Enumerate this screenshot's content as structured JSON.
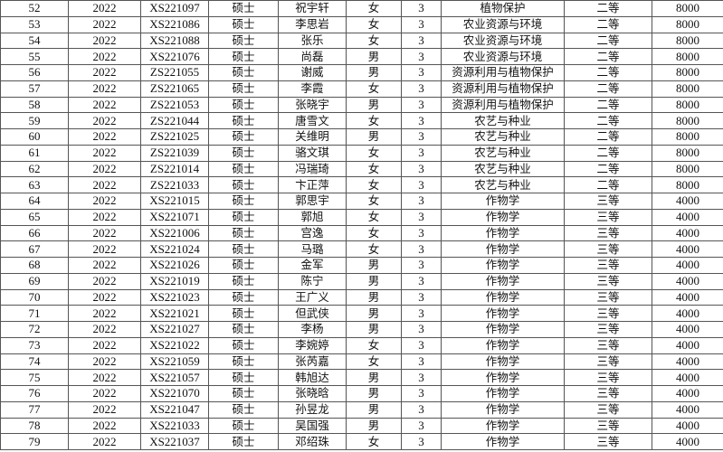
{
  "table": {
    "rows": [
      [
        "52",
        "2022",
        "XS221097",
        "硕士",
        "祝宇轩",
        "女",
        "3",
        "植物保护",
        "二等",
        "8000"
      ],
      [
        "53",
        "2022",
        "XS221086",
        "硕士",
        "李思岩",
        "女",
        "3",
        "农业资源与环境",
        "二等",
        "8000"
      ],
      [
        "54",
        "2022",
        "XS221088",
        "硕士",
        "张乐",
        "女",
        "3",
        "农业资源与环境",
        "二等",
        "8000"
      ],
      [
        "55",
        "2022",
        "XS221076",
        "硕士",
        "尚磊",
        "男",
        "3",
        "农业资源与环境",
        "二等",
        "8000"
      ],
      [
        "56",
        "2022",
        "ZS221055",
        "硕士",
        "谢威",
        "男",
        "3",
        "资源利用与植物保护",
        "二等",
        "8000"
      ],
      [
        "57",
        "2022",
        "ZS221065",
        "硕士",
        "李霞",
        "女",
        "3",
        "资源利用与植物保护",
        "二等",
        "8000"
      ],
      [
        "58",
        "2022",
        "ZS221053",
        "硕士",
        "张晓宇",
        "男",
        "3",
        "资源利用与植物保护",
        "二等",
        "8000"
      ],
      [
        "59",
        "2022",
        "ZS221044",
        "硕士",
        "唐雪文",
        "女",
        "3",
        "农艺与种业",
        "二等",
        "8000"
      ],
      [
        "60",
        "2022",
        "ZS221025",
        "硕士",
        "关维明",
        "男",
        "3",
        "农艺与种业",
        "二等",
        "8000"
      ],
      [
        "61",
        "2022",
        "ZS221039",
        "硕士",
        "骆文琪",
        "女",
        "3",
        "农艺与种业",
        "二等",
        "8000"
      ],
      [
        "62",
        "2022",
        "ZS221014",
        "硕士",
        "冯瑞琦",
        "女",
        "3",
        "农艺与种业",
        "二等",
        "8000"
      ],
      [
        "63",
        "2022",
        "ZS221033",
        "硕士",
        "卞正萍",
        "女",
        "3",
        "农艺与种业",
        "二等",
        "8000"
      ],
      [
        "64",
        "2022",
        "XS221015",
        "硕士",
        "郭思宇",
        "女",
        "3",
        "作物学",
        "三等",
        "4000"
      ],
      [
        "65",
        "2022",
        "XS221071",
        "硕士",
        "郭旭",
        "女",
        "3",
        "作物学",
        "三等",
        "4000"
      ],
      [
        "66",
        "2022",
        "XS221006",
        "硕士",
        "宫逸",
        "女",
        "3",
        "作物学",
        "三等",
        "4000"
      ],
      [
        "67",
        "2022",
        "XS221024",
        "硕士",
        "马璐",
        "女",
        "3",
        "作物学",
        "三等",
        "4000"
      ],
      [
        "68",
        "2022",
        "XS221026",
        "硕士",
        "金军",
        "男",
        "3",
        "作物学",
        "三等",
        "4000"
      ],
      [
        "69",
        "2022",
        "XS221019",
        "硕士",
        "陈宁",
        "男",
        "3",
        "作物学",
        "三等",
        "4000"
      ],
      [
        "70",
        "2022",
        "XS221023",
        "硕士",
        "王广义",
        "男",
        "3",
        "作物学",
        "三等",
        "4000"
      ],
      [
        "71",
        "2022",
        "XS221021",
        "硕士",
        "但武侠",
        "男",
        "3",
        "作物学",
        "三等",
        "4000"
      ],
      [
        "72",
        "2022",
        "XS221027",
        "硕士",
        "李杨",
        "男",
        "3",
        "作物学",
        "三等",
        "4000"
      ],
      [
        "73",
        "2022",
        "XS221022",
        "硕士",
        "李婉婷",
        "女",
        "3",
        "作物学",
        "三等",
        "4000"
      ],
      [
        "74",
        "2022",
        "XS221059",
        "硕士",
        "张芮嘉",
        "女",
        "3",
        "作物学",
        "三等",
        "4000"
      ],
      [
        "75",
        "2022",
        "XS221057",
        "硕士",
        "韩旭达",
        "男",
        "3",
        "作物学",
        "三等",
        "4000"
      ],
      [
        "76",
        "2022",
        "XS221070",
        "硕士",
        "张晓晗",
        "男",
        "3",
        "作物学",
        "三等",
        "4000"
      ],
      [
        "77",
        "2022",
        "XS221047",
        "硕士",
        "孙昱龙",
        "男",
        "3",
        "作物学",
        "三等",
        "4000"
      ],
      [
        "78",
        "2022",
        "XS221033",
        "硕士",
        "吴国强",
        "男",
        "3",
        "作物学",
        "三等",
        "4000"
      ],
      [
        "79",
        "2022",
        "XS221037",
        "硕士",
        "邓绍珠",
        "女",
        "3",
        "作物学",
        "三等",
        "4000"
      ]
    ]
  }
}
